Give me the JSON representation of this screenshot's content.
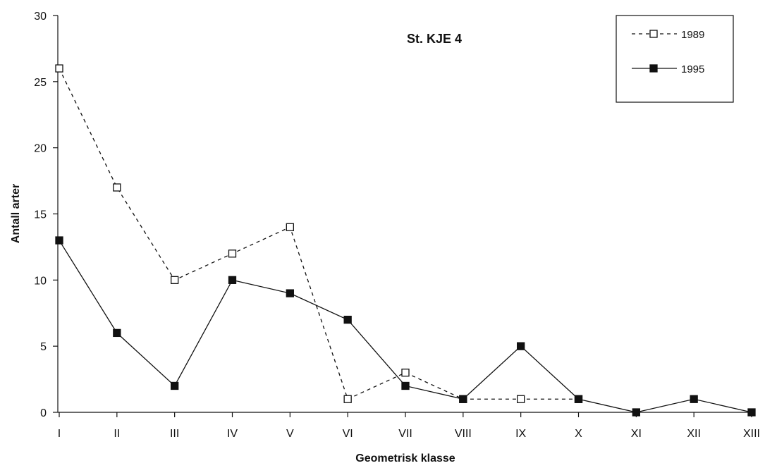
{
  "chart_data": {
    "type": "line",
    "title": "St. KJE 4",
    "xlabel": "Geometrisk klasse",
    "ylabel": "Antall arter",
    "categories": [
      "I",
      "II",
      "III",
      "IV",
      "V",
      "VI",
      "VII",
      "VIII",
      "IX",
      "X",
      "XI",
      "XII",
      "XIII"
    ],
    "ylim": [
      0,
      30
    ],
    "yticks": [
      0,
      5,
      10,
      15,
      20,
      25,
      30
    ],
    "grid": false,
    "legend_position": "top-right",
    "series": [
      {
        "name": "1989",
        "style": "dashed",
        "marker": "open-square",
        "color": "#111111",
        "values": [
          26,
          17,
          10,
          12,
          14,
          1,
          3,
          1,
          1,
          1,
          null,
          null,
          null
        ]
      },
      {
        "name": "1995",
        "style": "solid",
        "marker": "filled-square",
        "color": "#111111",
        "values": [
          13,
          6,
          2,
          10,
          9,
          7,
          2,
          1,
          5,
          1,
          0,
          1,
          0
        ]
      }
    ]
  }
}
